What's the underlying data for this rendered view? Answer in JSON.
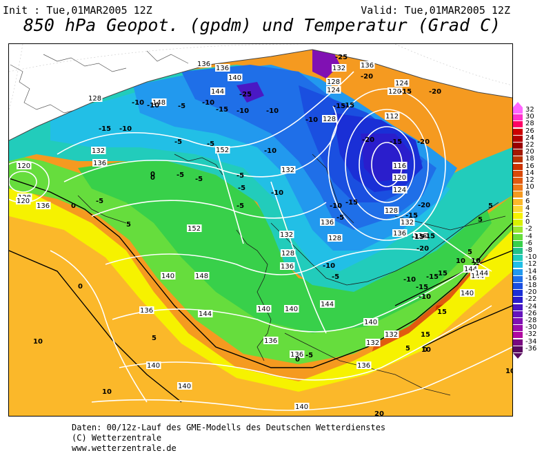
{
  "header": {
    "init": "Init : Tue,01MAR2005 12Z",
    "valid": "Valid: Tue,01MAR2005 12Z",
    "title": "850 hPa Geopot. (gpdm) und Temperatur (Grad C)"
  },
  "footer": {
    "line1": "Daten: 00/12z-Lauf des GME-Modells des Deutschen Wetterdienstes",
    "line2": "(C) Wetterzentrale",
    "line3": "www.wetterzentrale.de"
  },
  "legend": {
    "values": [
      "32",
      "30",
      "28",
      "26",
      "24",
      "22",
      "20",
      "18",
      "16",
      "14",
      "12",
      "10",
      "8",
      "6",
      "4",
      "2",
      "0",
      "-2",
      "-4",
      "-6",
      "-8",
      "-10",
      "-12",
      "-14",
      "-16",
      "-18",
      "-20",
      "-22",
      "-24",
      "-26",
      "-28",
      "-30",
      "-32",
      "-34",
      "-36"
    ],
    "colors": [
      "#ff66ff",
      "#ff33cc",
      "#ff0066",
      "#cc0000",
      "#b30000",
      "#990000",
      "#a31a00",
      "#b83300",
      "#cc3300",
      "#d94a0a",
      "#e05a10",
      "#ec7a1a",
      "#f59a20",
      "#fbb82a",
      "#fdd735",
      "#f6f200",
      "#d9f000",
      "#9ae62f",
      "#66dd3d",
      "#38d04a",
      "#22c28a",
      "#22ccbb",
      "#22bfe6",
      "#2299ee",
      "#1f6fe8",
      "#1a4fe0",
      "#1a2fd6",
      "#2a1ecc",
      "#4a18c4",
      "#6615bd",
      "#8011b3",
      "#990eaa",
      "#b00aa0",
      "#7a0a80",
      "#5a0a60"
    ]
  },
  "map": {
    "geopotential_labels": [
      "136",
      "136",
      "140",
      "144",
      "128",
      "124",
      "136",
      "132",
      "120",
      "124",
      "112",
      "116",
      "120",
      "124",
      "128",
      "128",
      "136",
      "148",
      "152",
      "128",
      "132",
      "136",
      "136",
      "120",
      "132",
      "128",
      "136",
      "144",
      "140",
      "152",
      "140",
      "136",
      "148",
      "144",
      "140",
      "140",
      "136",
      "136",
      "132",
      "132",
      "132",
      "136",
      "140",
      "140",
      "144",
      "144",
      "140",
      "144",
      "136",
      "128",
      "132",
      "136",
      "140",
      "128",
      "120"
    ],
    "temperature_labels": [
      "-25",
      "-20",
      "-25",
      "-15",
      "-20",
      "-10",
      "-5",
      "-10",
      "-15",
      "-10",
      "-15",
      "-10",
      "-5",
      "-5",
      "-15",
      "-10",
      "-10",
      "-15",
      "-20",
      "-15",
      "-20",
      "-20",
      "-5",
      "-10",
      "-5",
      "-5",
      "-10",
      "-5",
      "-15",
      "-10",
      "-15",
      "-20",
      "-15",
      "-5",
      "-10",
      "-15",
      "-10",
      "-15",
      "-10",
      "-5",
      "-15",
      "-10",
      "0",
      "-5",
      "0",
      "5",
      "0",
      "5",
      "10",
      "10",
      "15",
      "15",
      "10",
      "10",
      "5",
      "5",
      "0",
      "-5",
      "5",
      "0",
      "20",
      "15",
      "10",
      "5",
      "0",
      "10",
      "-5"
    ]
  }
}
